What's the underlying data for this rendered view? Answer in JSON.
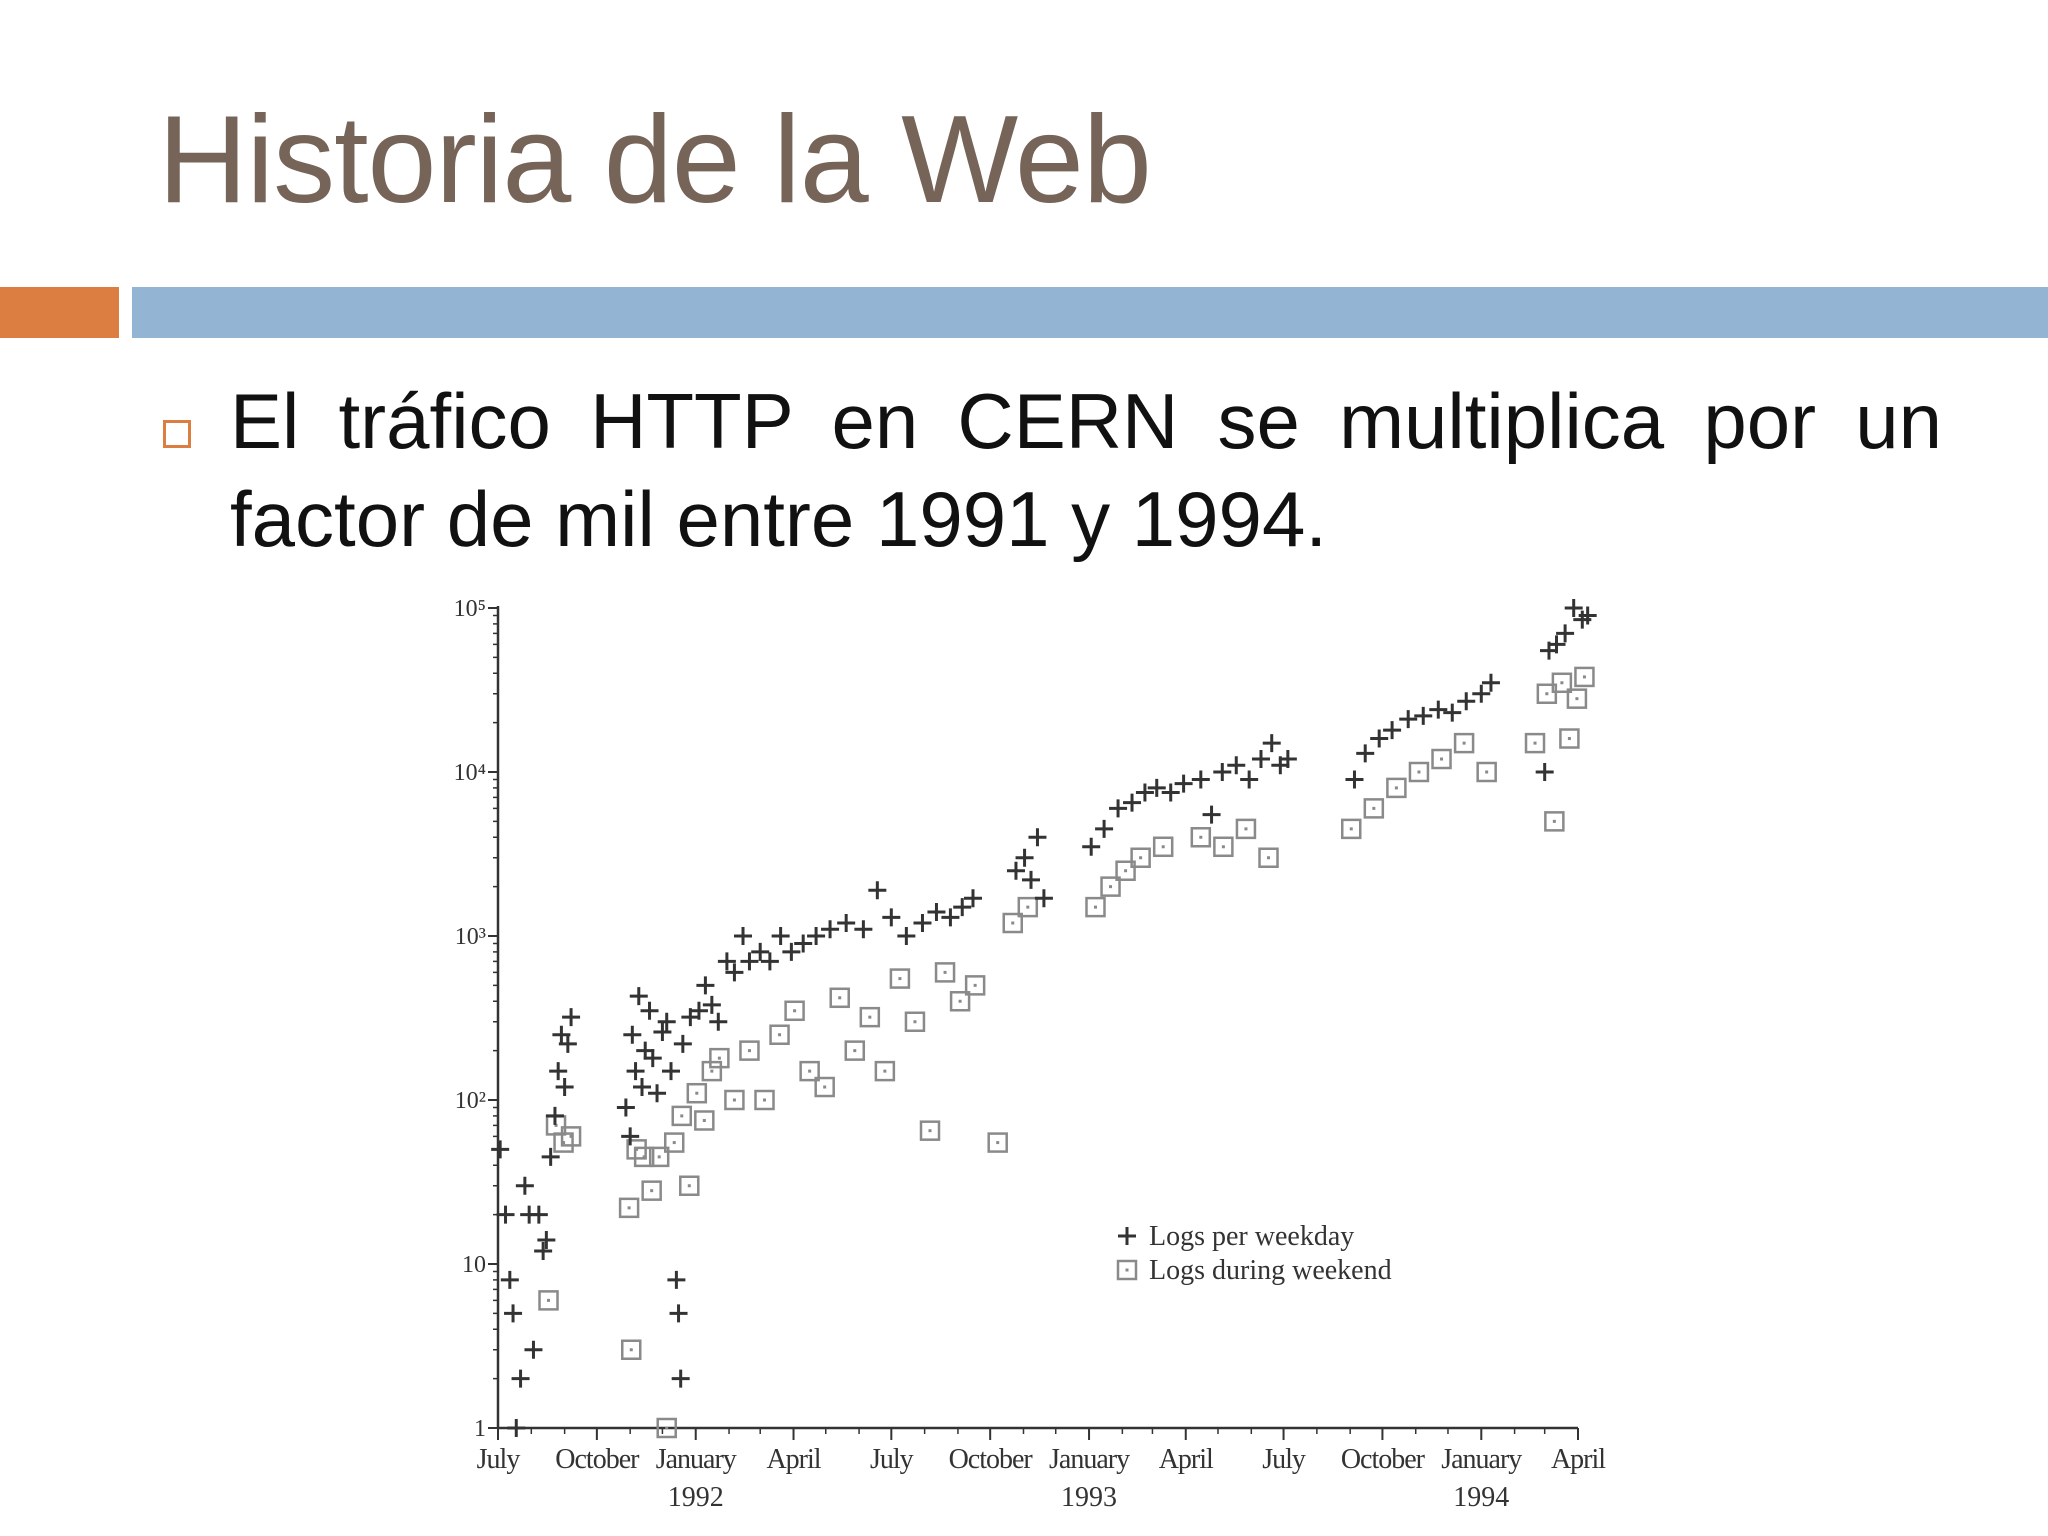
{
  "slide": {
    "title": "Historia de la Web",
    "bullet": "El tráfico HTTP en CERN se multiplica por un factor de mil entre 1991 y 1994."
  },
  "colors": {
    "title": "#766458",
    "accent_orange": "#dc7d42",
    "accent_blue": "#93b4d2",
    "text": "#111111",
    "weekday_marker": "#333333",
    "weekend_marker": "#8a8a8a"
  },
  "chart_data": {
    "type": "scatter",
    "title": "",
    "xlabel": "",
    "ylabel": "",
    "y_scale": "log",
    "ylim": [
      1,
      100000
    ],
    "xlim": [
      "1991-07",
      "1994-04"
    ],
    "grid": false,
    "legend_position": "lower-right",
    "y_ticks": [
      "10⁵",
      "10⁴",
      "10³",
      "10²",
      "10",
      "1"
    ],
    "y_tick_values": [
      100000,
      10000,
      1000,
      100,
      10,
      1
    ],
    "x_ticks": [
      {
        "date": "1991-07",
        "label": "July",
        "year": ""
      },
      {
        "date": "1991-10",
        "label": "October",
        "year": ""
      },
      {
        "date": "1992-01",
        "label": "January",
        "year": "1992"
      },
      {
        "date": "1992-04",
        "label": "April",
        "year": ""
      },
      {
        "date": "1992-07",
        "label": "July",
        "year": ""
      },
      {
        "date": "1992-10",
        "label": "October",
        "year": ""
      },
      {
        "date": "1993-01",
        "label": "January",
        "year": "1993"
      },
      {
        "date": "1993-04",
        "label": "April",
        "year": ""
      },
      {
        "date": "1993-07",
        "label": "July",
        "year": ""
      },
      {
        "date": "1993-10",
        "label": "October",
        "year": ""
      },
      {
        "date": "1994-01",
        "label": "January",
        "year": "1994"
      },
      {
        "date": "1994-04",
        "label": "April",
        "year": ""
      }
    ],
    "series": [
      {
        "name": "Logs per weekday",
        "marker": "plus",
        "points": [
          [
            "1991-07-03",
            50
          ],
          [
            "1991-07-08",
            20
          ],
          [
            "1991-07-12",
            8
          ],
          [
            "1991-07-15",
            5
          ],
          [
            "1991-07-18",
            1
          ],
          [
            "1991-07-22",
            2
          ],
          [
            "1991-07-26",
            30
          ],
          [
            "1991-07-30",
            20
          ],
          [
            "1991-08-03",
            3
          ],
          [
            "1991-08-08",
            20
          ],
          [
            "1991-08-12",
            12
          ],
          [
            "1991-08-15",
            14
          ],
          [
            "1991-08-19",
            45
          ],
          [
            "1991-08-23",
            80
          ],
          [
            "1991-08-26",
            150
          ],
          [
            "1991-08-29",
            250
          ],
          [
            "1991-09-01",
            120
          ],
          [
            "1991-09-04",
            220
          ],
          [
            "1991-09-07",
            320
          ],
          [
            "1991-10-28",
            90
          ],
          [
            "1991-11-01",
            60
          ],
          [
            "1991-11-03",
            250
          ],
          [
            "1991-11-06",
            150
          ],
          [
            "1991-11-09",
            430
          ],
          [
            "1991-11-12",
            120
          ],
          [
            "1991-11-15",
            200
          ],
          [
            "1991-11-19",
            350
          ],
          [
            "1991-11-22",
            180
          ],
          [
            "1991-11-26",
            110
          ],
          [
            "1991-12-01",
            260
          ],
          [
            "1991-12-05",
            300
          ],
          [
            "1991-12-09",
            150
          ],
          [
            "1991-12-14",
            8
          ],
          [
            "1991-12-16",
            5
          ],
          [
            "1991-12-18",
            2
          ],
          [
            "1991-12-20",
            220
          ],
          [
            "1991-12-27",
            320
          ],
          [
            "1992-01-04",
            350
          ],
          [
            "1992-01-10",
            500
          ],
          [
            "1992-01-16",
            380
          ],
          [
            "1992-01-22",
            300
          ],
          [
            "1992-01-30",
            700
          ],
          [
            "1992-02-06",
            600
          ],
          [
            "1992-02-14",
            1000
          ],
          [
            "1992-02-20",
            700
          ],
          [
            "1992-03-01",
            800
          ],
          [
            "1992-03-10",
            700
          ],
          [
            "1992-03-20",
            1000
          ],
          [
            "1992-03-30",
            800
          ],
          [
            "1992-04-10",
            900
          ],
          [
            "1992-04-22",
            1000
          ],
          [
            "1992-05-05",
            1100
          ],
          [
            "1992-05-20",
            1200
          ],
          [
            "1992-06-05",
            1100
          ],
          [
            "1992-06-18",
            1900
          ],
          [
            "1992-07-01",
            1300
          ],
          [
            "1992-07-15",
            1000
          ],
          [
            "1992-07-30",
            1200
          ],
          [
            "1992-08-12",
            1400
          ],
          [
            "1992-08-25",
            1300
          ],
          [
            "1992-09-05",
            1500
          ],
          [
            "1992-09-15",
            1700
          ],
          [
            "1992-10-25",
            2500
          ],
          [
            "1992-11-02",
            3000
          ],
          [
            "1992-11-08",
            2200
          ],
          [
            "1992-11-14",
            4000
          ],
          [
            "1992-11-20",
            1700
          ],
          [
            "1993-01-03",
            3500
          ],
          [
            "1993-01-15",
            4500
          ],
          [
            "1993-01-28",
            6000
          ],
          [
            "1993-02-10",
            6500
          ],
          [
            "1993-02-22",
            7500
          ],
          [
            "1993-03-05",
            8000
          ],
          [
            "1993-03-18",
            7500
          ],
          [
            "1993-03-30",
            8500
          ],
          [
            "1993-04-15",
            9000
          ],
          [
            "1993-04-25",
            5500
          ],
          [
            "1993-05-05",
            10000
          ],
          [
            "1993-05-18",
            11000
          ],
          [
            "1993-05-30",
            9000
          ],
          [
            "1993-06-10",
            12000
          ],
          [
            "1993-06-20",
            15000
          ],
          [
            "1993-06-28",
            11000
          ],
          [
            "1993-07-05",
            12000
          ],
          [
            "1993-09-05",
            9000
          ],
          [
            "1993-09-15",
            13000
          ],
          [
            "1993-09-28",
            16000
          ],
          [
            "1993-10-10",
            18000
          ],
          [
            "1993-10-25",
            21000
          ],
          [
            "1993-11-08",
            22000
          ],
          [
            "1993-11-22",
            24000
          ],
          [
            "1993-12-05",
            23000
          ],
          [
            "1993-12-18",
            27000
          ],
          [
            "1994-01-01",
            30000
          ],
          [
            "1994-01-10",
            35000
          ],
          [
            "1994-03-01",
            10000
          ],
          [
            "1994-03-05",
            55000
          ],
          [
            "1994-03-12",
            60000
          ],
          [
            "1994-03-20",
            70000
          ],
          [
            "1994-03-28",
            100000
          ],
          [
            "1994-04-05",
            85000
          ],
          [
            "1994-04-10",
            90000
          ]
        ]
      },
      {
        "name": "Logs during weekend",
        "marker": "square",
        "points": [
          [
            "1991-08-17",
            6
          ],
          [
            "1991-08-24",
            70
          ],
          [
            "1991-08-31",
            55
          ],
          [
            "1991-09-07",
            60
          ],
          [
            "1991-10-31",
            22
          ],
          [
            "1991-11-02",
            3
          ],
          [
            "1991-11-07",
            50
          ],
          [
            "1991-11-14",
            45
          ],
          [
            "1991-11-21",
            28
          ],
          [
            "1991-11-28",
            45
          ],
          [
            "1991-12-05",
            1
          ],
          [
            "1991-12-12",
            55
          ],
          [
            "1991-12-19",
            80
          ],
          [
            "1991-12-26",
            30
          ],
          [
            "1992-01-02",
            110
          ],
          [
            "1992-01-09",
            75
          ],
          [
            "1992-01-16",
            150
          ],
          [
            "1992-01-23",
            180
          ],
          [
            "1992-02-06",
            100
          ],
          [
            "1992-02-20",
            200
          ],
          [
            "1992-03-05",
            100
          ],
          [
            "1992-03-19",
            250
          ],
          [
            "1992-04-02",
            350
          ],
          [
            "1992-04-16",
            150
          ],
          [
            "1992-04-30",
            120
          ],
          [
            "1992-05-14",
            420
          ],
          [
            "1992-05-28",
            200
          ],
          [
            "1992-06-11",
            320
          ],
          [
            "1992-06-25",
            150
          ],
          [
            "1992-07-09",
            550
          ],
          [
            "1992-07-23",
            300
          ],
          [
            "1992-08-06",
            65
          ],
          [
            "1992-08-20",
            600
          ],
          [
            "1992-09-03",
            400
          ],
          [
            "1992-09-17",
            500
          ],
          [
            "1992-10-08",
            55
          ],
          [
            "1992-10-22",
            1200
          ],
          [
            "1992-11-05",
            1500
          ],
          [
            "1993-01-07",
            1500
          ],
          [
            "1993-01-21",
            2000
          ],
          [
            "1993-02-04",
            2500
          ],
          [
            "1993-02-18",
            3000
          ],
          [
            "1993-03-11",
            3500
          ],
          [
            "1993-04-15",
            4000
          ],
          [
            "1993-05-06",
            3500
          ],
          [
            "1993-05-27",
            4500
          ],
          [
            "1993-06-17",
            3000
          ],
          [
            "1993-09-02",
            4500
          ],
          [
            "1993-09-23",
            6000
          ],
          [
            "1993-10-14",
            8000
          ],
          [
            "1993-11-04",
            10000
          ],
          [
            "1993-11-25",
            12000
          ],
          [
            "1993-12-16",
            15000
          ],
          [
            "1994-01-06",
            10000
          ],
          [
            "1994-02-20",
            15000
          ],
          [
            "1994-03-03",
            30000
          ],
          [
            "1994-03-10",
            5000
          ],
          [
            "1994-03-17",
            35000
          ],
          [
            "1994-03-24",
            16000
          ],
          [
            "1994-03-31",
            28000
          ],
          [
            "1994-04-07",
            38000
          ]
        ]
      }
    ]
  }
}
